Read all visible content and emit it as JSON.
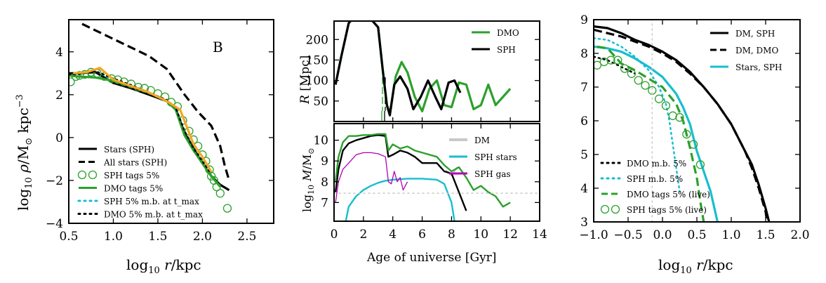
{
  "chart_data": [
    {
      "type": "line",
      "annotation": "B",
      "xlabel": "log10 r/kpc",
      "ylabel": "log10 ρ/M⊙ kpc⁻³",
      "xlim": [
        0.5,
        2.8
      ],
      "ylim": [
        -4,
        5.5
      ],
      "xticks": [
        "0.5",
        "1.0",
        "1.5",
        "2.0",
        "2.5"
      ],
      "yticks": [
        "−4",
        "−2",
        "0",
        "2",
        "4"
      ],
      "legend_placement": "lower-left",
      "series": [
        {
          "name": "Stars (SPH)",
          "style": "solid",
          "color": "#000000",
          "x": [
            0.5,
            0.6,
            0.8,
            1.0,
            1.2,
            1.4,
            1.6,
            1.7,
            1.8,
            1.9,
            2.0,
            2.05,
            2.1,
            2.2,
            2.3
          ],
          "y": [
            3.0,
            3.0,
            3.05,
            2.55,
            2.3,
            2.0,
            1.7,
            1.35,
            0.2,
            -0.5,
            -1.2,
            -1.5,
            -1.8,
            -2.2,
            -2.45
          ]
        },
        {
          "name": "All stars (SPH)",
          "style": "dashed",
          "color": "#000000",
          "x": [
            0.65,
            0.8,
            1.0,
            1.2,
            1.4,
            1.6,
            1.8,
            1.95,
            2.1,
            2.2,
            2.25,
            2.3
          ],
          "y": [
            5.3,
            5.0,
            4.6,
            4.2,
            3.8,
            3.2,
            2.0,
            1.2,
            0.55,
            -0.4,
            -1.3,
            -2.0
          ]
        },
        {
          "name": "SPH tags 5%",
          "style": "open-circles",
          "color": "#2ca02c",
          "x": [
            0.52,
            0.58,
            0.62,
            0.68,
            0.75,
            0.82,
            0.9,
            0.98,
            1.05,
            1.12,
            1.2,
            1.28,
            1.35,
            1.42,
            1.5,
            1.58,
            1.65,
            1.72,
            1.78,
            1.85,
            1.9,
            1.95,
            2.0,
            2.04,
            2.08,
            2.1,
            2.13,
            2.16,
            2.2,
            2.28
          ],
          "y": [
            2.6,
            2.85,
            2.9,
            2.95,
            3.05,
            3.0,
            2.85,
            2.75,
            2.7,
            2.6,
            2.5,
            2.35,
            2.3,
            2.2,
            2.05,
            1.9,
            1.65,
            1.45,
            0.8,
            0.3,
            -0.1,
            -0.4,
            -0.8,
            -1.1,
            -1.5,
            -1.8,
            -2.0,
            -2.3,
            -2.6,
            -3.3
          ]
        },
        {
          "name": "DMO tags 5%",
          "style": "solid",
          "color": "#2ca02c",
          "x": [
            0.5,
            0.6,
            0.8,
            1.0,
            1.2,
            1.4,
            1.6,
            1.7,
            1.8,
            1.9,
            2.0,
            2.1,
            2.2
          ],
          "y": [
            2.9,
            2.85,
            2.8,
            2.65,
            2.4,
            2.1,
            1.7,
            1.3,
            0.1,
            -0.6,
            -1.2,
            -1.8,
            -2.3
          ]
        },
        {
          "name": "SPH 5% m.b. at t_max",
          "style": "dotted",
          "color": "#17becf",
          "x": [
            0.5,
            0.6,
            0.8,
            1.0,
            1.2,
            1.4,
            1.6,
            1.7,
            1.8,
            1.9,
            2.0,
            2.1
          ],
          "y": [
            2.95,
            3.0,
            3.1,
            2.7,
            2.4,
            2.1,
            1.75,
            1.4,
            0.3,
            -0.5,
            -1.1,
            -1.7
          ]
        },
        {
          "name": "DMO 5% m.b. at t_max",
          "style": "dotted",
          "color": "#000000",
          "x": [
            0.5,
            0.6,
            0.8,
            1.0,
            1.2,
            1.4,
            1.6,
            1.7,
            1.8,
            1.9,
            2.0,
            2.1
          ],
          "y": [
            2.95,
            2.95,
            3.1,
            2.75,
            2.45,
            2.1,
            1.75,
            1.4,
            0.3,
            -0.5,
            -1.1,
            -1.7
          ]
        },
        {
          "name": "",
          "style": "solid",
          "color": "#f5a623",
          "x": [
            0.55,
            0.7,
            0.85,
            1.0,
            1.2,
            1.4,
            1.6,
            1.75,
            1.9,
            2.0,
            2.1
          ],
          "y": [
            3.0,
            3.05,
            3.25,
            2.7,
            2.4,
            2.1,
            1.7,
            1.3,
            -0.3,
            -0.9,
            -1.6
          ]
        }
      ]
    },
    {
      "type": "line",
      "ylabel": "R [Mpc]",
      "xlim": [
        0,
        14
      ],
      "ylim": [
        0,
        245
      ],
      "yticks": [
        "50",
        "100",
        "150",
        "200"
      ],
      "legend_placement": "top-right",
      "series": [
        {
          "name": "DMO",
          "style": "solid",
          "color": "#2ca02c",
          "x": [
            0.1,
            0.5,
            1.0,
            1.5,
            2.0,
            2.5,
            3.0,
            3.3,
            3.6,
            3.8,
            4.2,
            4.6,
            5.0,
            5.5,
            6.0,
            6.5,
            7.0,
            7.5,
            8.0,
            8.5,
            9.0,
            9.5,
            10.0,
            10.5,
            11.0,
            11.5,
            12.0
          ],
          "y": [
            90,
            160,
            240,
            260,
            260,
            250,
            230,
            130,
            40,
            20,
            110,
            145,
            120,
            60,
            25,
            80,
            100,
            40,
            35,
            95,
            90,
            30,
            40,
            90,
            40,
            60,
            80
          ]
        },
        {
          "name": "SPH",
          "style": "solid",
          "color": "#000000",
          "x": [
            0.1,
            0.5,
            1.0,
            1.5,
            2.0,
            2.5,
            3.0,
            3.3,
            3.6,
            3.8,
            4.1,
            4.5,
            5.0,
            5.4,
            5.9,
            6.4,
            6.9,
            7.3,
            7.8,
            8.2,
            8.6
          ],
          "y": [
            90,
            160,
            240,
            260,
            260,
            250,
            230,
            130,
            40,
            15,
            90,
            110,
            80,
            30,
            60,
            100,
            60,
            30,
            95,
            100,
            70
          ]
        }
      ]
    },
    {
      "type": "line",
      "xlabel": "Age of universe [Gyr]",
      "ylabel": "log10 M/M⊙",
      "xlim": [
        0,
        14
      ],
      "ylim": [
        6.1,
        10.8
      ],
      "xticks": [
        "0",
        "2",
        "4",
        "6",
        "8",
        "10",
        "12",
        "14"
      ],
      "yticks": [
        "7",
        "8",
        "9",
        "10"
      ],
      "legend_placement": "top-right",
      "series": [
        {
          "name": "DM",
          "style": "solid",
          "color": "#c8c8c8",
          "x": [
            7.6,
            8.0,
            8.4
          ],
          "y": [
            8.55,
            8.3,
            8.7
          ]
        },
        {
          "name": "SPH stars",
          "style": "solid",
          "color": "#17becf",
          "x": [
            0.8,
            1.0,
            1.5,
            2.0,
            2.5,
            3.0,
            3.5,
            4.0,
            5.0,
            6.0,
            7.0,
            7.5,
            8.0,
            8.2
          ],
          "y": [
            6.1,
            6.8,
            7.3,
            7.6,
            7.8,
            7.95,
            8.05,
            8.1,
            8.15,
            8.15,
            8.1,
            7.9,
            7.0,
            6.1
          ]
        },
        {
          "name": "SPH gas",
          "style": "solid",
          "color": "#b300b3",
          "x": [
            0.1,
            0.3,
            0.6,
            1.0,
            1.5,
            2.0,
            2.5,
            3.0,
            3.5,
            3.7,
            3.9,
            4.1,
            4.3,
            4.5,
            4.7,
            5.0
          ],
          "y": [
            7.0,
            8.0,
            8.6,
            8.9,
            9.3,
            9.4,
            9.4,
            9.35,
            9.2,
            8.0,
            7.9,
            8.5,
            8.0,
            8.2,
            7.6,
            8.0
          ]
        },
        {
          "name": "",
          "style": "solid",
          "color": "#000000",
          "x": [
            0.1,
            0.3,
            0.6,
            1.0,
            1.5,
            2.0,
            2.5,
            3.0,
            3.5,
            3.7,
            4.0,
            4.5,
            5.0,
            5.5,
            6.0,
            7.0,
            7.5,
            8.0,
            8.5,
            9.0
          ],
          "y": [
            7.5,
            8.6,
            9.5,
            9.85,
            10.0,
            10.1,
            10.2,
            10.25,
            10.2,
            9.2,
            9.3,
            9.5,
            9.4,
            9.2,
            8.9,
            8.9,
            8.5,
            8.4,
            7.5,
            6.6
          ]
        },
        {
          "name": "",
          "style": "solid",
          "color": "#2ca02c",
          "x": [
            0.1,
            0.3,
            0.6,
            1.0,
            1.5,
            2.0,
            2.5,
            3.0,
            3.5,
            3.7,
            4.0,
            4.5,
            5.0,
            5.5,
            6.0,
            7.0,
            7.5,
            8.0,
            8.5,
            9.0,
            9.5,
            10.0,
            10.5,
            11.0,
            11.5,
            12.0
          ],
          "y": [
            8.0,
            9.2,
            9.9,
            10.2,
            10.2,
            10.25,
            10.25,
            10.3,
            10.3,
            9.5,
            9.8,
            9.6,
            9.7,
            9.5,
            9.4,
            9.2,
            8.8,
            8.5,
            8.7,
            8.2,
            7.6,
            7.8,
            7.5,
            7.3,
            6.8,
            7.0
          ]
        },
        {
          "name": "",
          "style": "dotted",
          "color": "#c8c8c8",
          "x": [
            0,
            14
          ],
          "y": [
            7.45,
            7.45
          ]
        }
      ]
    },
    {
      "type": "line",
      "xlabel": "log10 r/kpc",
      "xlim": [
        -1.0,
        2.0
      ],
      "ylim": [
        3,
        9
      ],
      "xticks": [
        "−1.0",
        "−0.5",
        "0.0",
        "0.5",
        "1.0",
        "1.5",
        "2.0"
      ],
      "yticks": [
        "3",
        "4",
        "5",
        "6",
        "7",
        "8",
        "9"
      ],
      "legend_placement": "upper-right and lower-left",
      "series": [
        {
          "name": "DM, SPH",
          "style": "solid",
          "color": "#000000",
          "x": [
            -1.0,
            -0.8,
            -0.6,
            -0.4,
            -0.2,
            0.0,
            0.2,
            0.4,
            0.6,
            0.8,
            1.0,
            1.2,
            1.3,
            1.4,
            1.5,
            1.55
          ],
          "y": [
            8.8,
            8.75,
            8.6,
            8.4,
            8.25,
            8.05,
            7.8,
            7.45,
            7.0,
            6.5,
            5.9,
            5.1,
            4.7,
            4.1,
            3.4,
            3.0
          ]
        },
        {
          "name": "DM, DMO",
          "style": "dashed",
          "color": "#000000",
          "x": [
            -1.0,
            -0.8,
            -0.6,
            -0.4,
            -0.2,
            0.0,
            0.2,
            0.4,
            0.6,
            0.8,
            1.0,
            1.2,
            1.3,
            1.4,
            1.5,
            1.52
          ],
          "y": [
            8.7,
            8.6,
            8.5,
            8.35,
            8.2,
            8.0,
            7.75,
            7.4,
            7.0,
            6.5,
            5.9,
            5.1,
            4.6,
            4.0,
            3.3,
            3.0
          ]
        },
        {
          "name": "Stars, SPH",
          "style": "solid",
          "color": "#17becf",
          "x": [
            -1.0,
            -0.8,
            -0.6,
            -0.4,
            -0.2,
            0.0,
            0.2,
            0.3,
            0.4,
            0.5,
            0.6,
            0.7,
            0.8
          ],
          "y": [
            8.2,
            8.15,
            8.05,
            7.85,
            7.6,
            7.3,
            6.8,
            6.4,
            5.9,
            5.1,
            4.5,
            3.9,
            3.0
          ]
        },
        {
          "name": "DMO m.b. 5%",
          "style": "dotted",
          "color": "#000000",
          "x": [
            -1.0,
            -0.8,
            -0.6,
            -0.4
          ],
          "y": [
            7.9,
            7.8,
            7.6,
            7.4
          ]
        },
        {
          "name": "SPH m.b. 5%",
          "style": "dotted",
          "color": "#17becf",
          "x": [
            -1.0,
            -0.8,
            -0.6,
            -0.4,
            -0.2,
            -0.05,
            0.05,
            0.1,
            0.15,
            0.2,
            0.25
          ],
          "y": [
            8.45,
            8.4,
            8.2,
            7.9,
            7.5,
            7.0,
            6.5,
            6.0,
            5.3,
            4.6,
            3.9
          ]
        },
        {
          "name": "DMO tags 5% (live)",
          "style": "dashed",
          "color": "#2ca02c",
          "x": [
            -0.95,
            -0.8,
            -0.6,
            -0.4,
            -0.2,
            0.0,
            0.2,
            0.3,
            0.4,
            0.5,
            0.55,
            0.6
          ],
          "y": [
            8.2,
            8.15,
            7.7,
            7.5,
            7.25,
            7.0,
            6.5,
            6.0,
            5.2,
            4.3,
            3.6,
            3.0
          ]
        },
        {
          "name": "SPH tags 5% (live)",
          "style": "open-circles",
          "color": "#2ca02c",
          "x": [
            -0.95,
            -0.85,
            -0.75,
            -0.65,
            -0.55,
            -0.45,
            -0.35,
            -0.25,
            -0.15,
            -0.05,
            0.05,
            0.15,
            0.25,
            0.35,
            0.45,
            0.55
          ],
          "y": [
            7.65,
            7.75,
            7.8,
            7.8,
            7.55,
            7.4,
            7.2,
            7.05,
            6.9,
            6.65,
            6.45,
            6.15,
            6.1,
            5.6,
            5.3,
            4.7
          ]
        },
        {
          "name": "",
          "style": "dotted",
          "color": "#c8c8c8",
          "x": [
            -0.15,
            -0.15
          ],
          "y": [
            3,
            9
          ]
        }
      ]
    }
  ]
}
